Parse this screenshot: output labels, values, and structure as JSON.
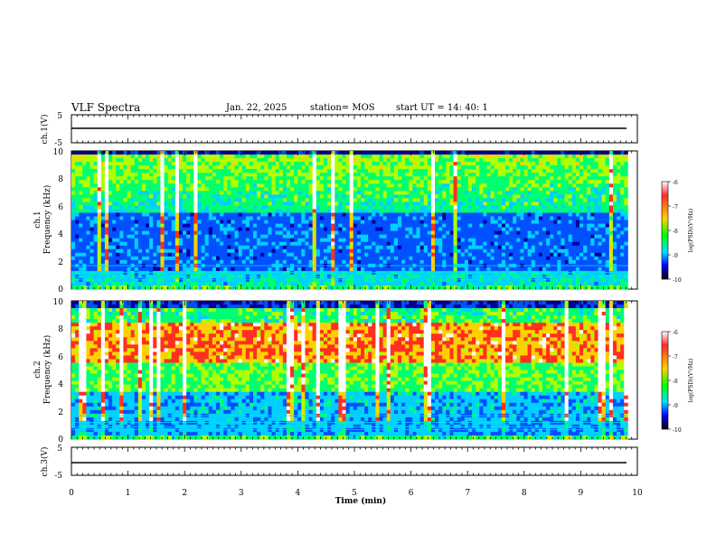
{
  "header": {
    "title": "VLF Spectra",
    "date": "Jan. 22, 2025",
    "station": "station= MOS",
    "start": "start UT =  14: 40: 1"
  },
  "chart_data": [
    {
      "type": "line",
      "name": "ch1_voltage",
      "ylabel": "ch.1(V)",
      "ylim": [
        -5,
        5
      ],
      "yticks": [
        "5",
        "-5"
      ],
      "xlim": [
        0,
        10
      ],
      "series_level": -1.5,
      "trace_range": [
        0,
        9.83
      ]
    },
    {
      "type": "heatmap",
      "name": "ch1_spectrogram",
      "ylabel": "ch.1\nFrequency (kHz)",
      "ylim": [
        0,
        10
      ],
      "yticks": [
        "0",
        "2",
        "4",
        "6",
        "8",
        "10"
      ],
      "xlim": [
        0,
        9.83
      ],
      "color_limits": [
        -10,
        -6
      ]
    },
    {
      "type": "heatmap",
      "name": "ch2_spectrogram",
      "ylabel": "ch.2\nFrequency (kHz)",
      "ylim": [
        0,
        10
      ],
      "yticks": [
        "0",
        "2",
        "4",
        "6",
        "8",
        "10"
      ],
      "xlim": [
        0,
        9.83
      ],
      "color_limits": [
        -10,
        -6
      ]
    },
    {
      "type": "line",
      "name": "ch3_voltage",
      "ylabel": "ch.3(V)",
      "ylim": [
        -5,
        5
      ],
      "yticks": [
        "5",
        "-5"
      ],
      "xlim": [
        0,
        10
      ],
      "series_level": -1.5,
      "trace_range": [
        0,
        9.83
      ]
    }
  ],
  "xaxis": {
    "label": "Time (min)",
    "ticks": [
      "0",
      "1",
      "2",
      "3",
      "4",
      "5",
      "6",
      "7",
      "8",
      "9",
      "10"
    ]
  },
  "colorbar": {
    "label": "log(PSD)(V²/Hz)",
    "ticks": [
      "-6",
      "-7",
      "-8",
      "-9",
      "-10"
    ],
    "colors": [
      "#ffffff",
      "#ff0000",
      "#ffff00",
      "#00ff00",
      "#00ffff",
      "#0000ff",
      "#000000"
    ]
  }
}
